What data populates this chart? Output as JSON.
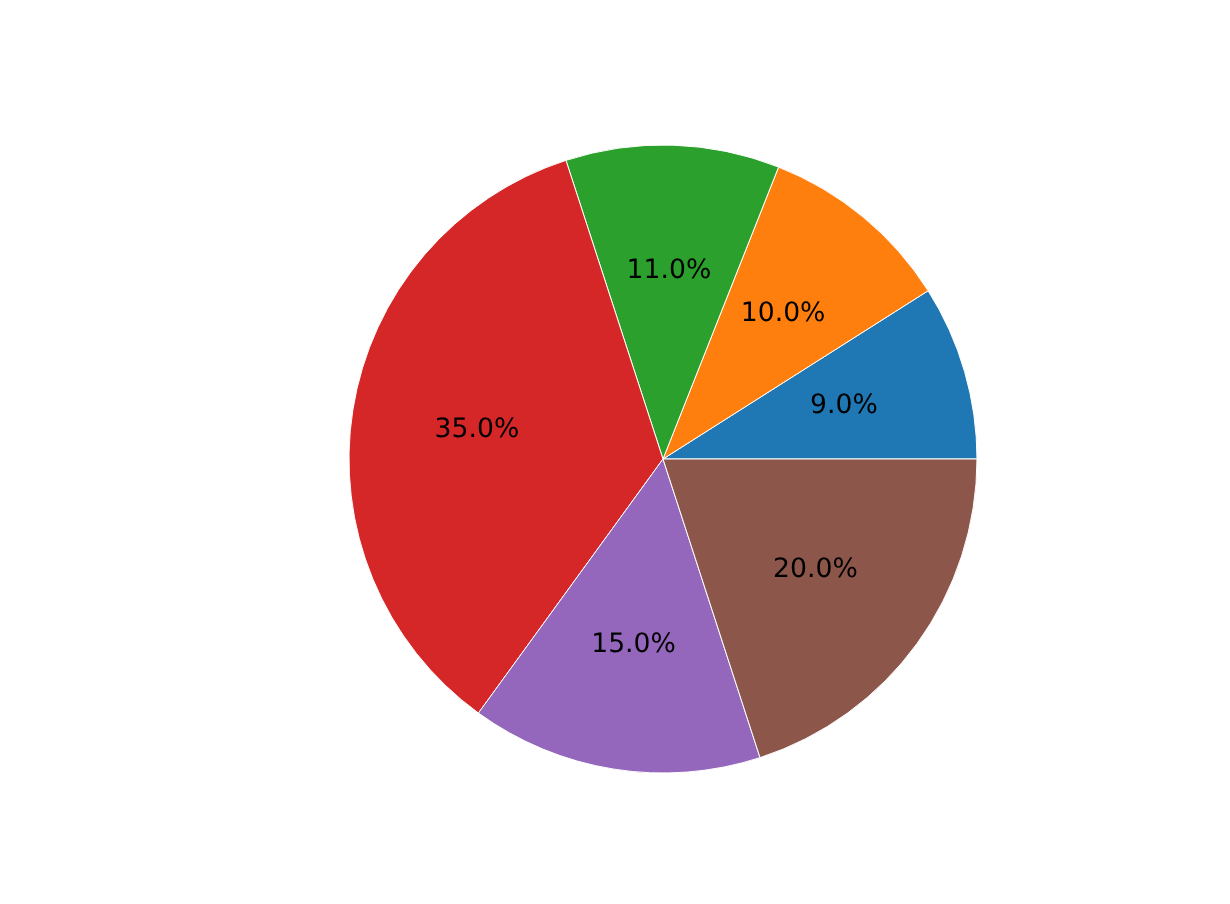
{
  "chart_data": {
    "type": "pie",
    "categories": [
      null,
      null,
      null,
      null,
      null,
      null
    ],
    "values": [
      9,
      10,
      11,
      35,
      15,
      20
    ],
    "colors": [
      "#1f77b4",
      "#ff7f0e",
      "#2ca02c",
      "#d62728",
      "#9467bd",
      "#8c564b"
    ],
    "value_labels": [
      "9.0%",
      "10.0%",
      "11.0%",
      "35.0%",
      "15.0%",
      "20.0%"
    ]
  }
}
